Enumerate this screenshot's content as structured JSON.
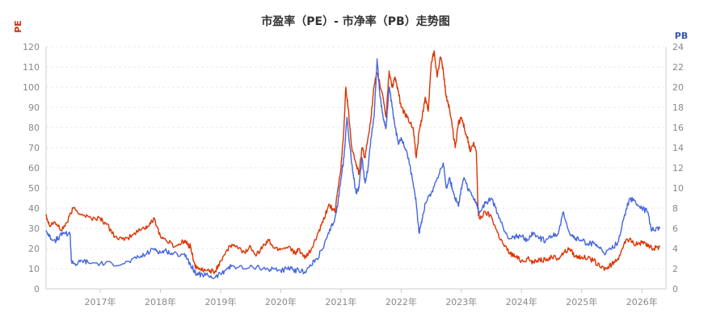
{
  "chart_data": {
    "type": "line",
    "title": "市盈率（PE）- 市净率（PB）走势图",
    "left_axis": {
      "label": "PE",
      "color": "#cc3311",
      "range": [
        0,
        120
      ],
      "ticks": [
        "0",
        "10",
        "20",
        "30",
        "40",
        "50",
        "60",
        "70",
        "80",
        "90",
        "100",
        "110",
        "120"
      ]
    },
    "right_axis": {
      "label": "PB",
      "color": "#3355bb",
      "range": [
        0,
        24
      ],
      "ticks": [
        "0",
        "2",
        "4",
        "6",
        "8",
        "10",
        "12",
        "14",
        "16",
        "18",
        "20",
        "22",
        "24"
      ]
    },
    "x_range": [
      2016.1,
      2026.4
    ],
    "x_ticks": [
      {
        "value": 2017,
        "label": "2017年"
      },
      {
        "value": 2018,
        "label": "2018年"
      },
      {
        "value": 2019,
        "label": "2019年"
      },
      {
        "value": 2020,
        "label": "2020年"
      },
      {
        "value": 2021,
        "label": "2021年"
      },
      {
        "value": 2022,
        "label": "2022年"
      },
      {
        "value": 2023,
        "label": "2023年"
      },
      {
        "value": 2024,
        "label": "2024年"
      },
      {
        "value": 2025,
        "label": "2025年"
      },
      {
        "value": 2026,
        "label": "2026年"
      }
    ],
    "grid": true,
    "series": [
      {
        "name": "PE",
        "axis": "left",
        "color": "#dd3300",
        "points": [
          [
            2016.1,
            37
          ],
          [
            2016.15,
            32
          ],
          [
            2016.25,
            33
          ],
          [
            2016.35,
            29
          ],
          [
            2016.45,
            33
          ],
          [
            2016.55,
            40
          ],
          [
            2016.7,
            37
          ],
          [
            2016.85,
            35
          ],
          [
            2017.0,
            35
          ],
          [
            2017.1,
            32
          ],
          [
            2017.25,
            26
          ],
          [
            2017.4,
            24
          ],
          [
            2017.55,
            27
          ],
          [
            2017.7,
            30
          ],
          [
            2017.8,
            31
          ],
          [
            2017.9,
            35
          ],
          [
            2018.0,
            26
          ],
          [
            2018.1,
            24
          ],
          [
            2018.25,
            21
          ],
          [
            2018.4,
            24
          ],
          [
            2018.45,
            22
          ],
          [
            2018.5,
            21
          ],
          [
            2018.55,
            14
          ],
          [
            2018.6,
            10
          ],
          [
            2018.75,
            9
          ],
          [
            2018.85,
            9
          ],
          [
            2018.9,
            8
          ],
          [
            2019.0,
            14
          ],
          [
            2019.1,
            19
          ],
          [
            2019.2,
            22
          ],
          [
            2019.3,
            20
          ],
          [
            2019.4,
            18
          ],
          [
            2019.5,
            21
          ],
          [
            2019.6,
            17
          ],
          [
            2019.7,
            21
          ],
          [
            2019.8,
            24
          ],
          [
            2019.9,
            20
          ],
          [
            2020.0,
            20
          ],
          [
            2020.15,
            21
          ],
          [
            2020.25,
            17
          ],
          [
            2020.3,
            20
          ],
          [
            2020.4,
            15
          ],
          [
            2020.5,
            19
          ],
          [
            2020.6,
            26
          ],
          [
            2020.7,
            33
          ],
          [
            2020.8,
            42
          ],
          [
            2020.9,
            38
          ],
          [
            2021.0,
            60
          ],
          [
            2021.05,
            80
          ],
          [
            2021.08,
            100
          ],
          [
            2021.12,
            90
          ],
          [
            2021.18,
            70
          ],
          [
            2021.25,
            62
          ],
          [
            2021.3,
            57
          ],
          [
            2021.35,
            70
          ],
          [
            2021.4,
            65
          ],
          [
            2021.45,
            75
          ],
          [
            2021.5,
            85
          ],
          [
            2021.55,
            100
          ],
          [
            2021.6,
            107
          ],
          [
            2021.7,
            95
          ],
          [
            2021.75,
            85
          ],
          [
            2021.8,
            108
          ],
          [
            2021.85,
            100
          ],
          [
            2021.9,
            105
          ],
          [
            2021.95,
            98
          ],
          [
            2022.0,
            90
          ],
          [
            2022.1,
            85
          ],
          [
            2022.2,
            80
          ],
          [
            2022.25,
            65
          ],
          [
            2022.3,
            78
          ],
          [
            2022.35,
            85
          ],
          [
            2022.4,
            95
          ],
          [
            2022.45,
            88
          ],
          [
            2022.5,
            112
          ],
          [
            2022.55,
            118
          ],
          [
            2022.6,
            105
          ],
          [
            2022.65,
            115
          ],
          [
            2022.7,
            108
          ],
          [
            2022.75,
            95
          ],
          [
            2022.8,
            90
          ],
          [
            2022.85,
            80
          ],
          [
            2022.9,
            70
          ],
          [
            2022.95,
            82
          ],
          [
            2023.0,
            85
          ],
          [
            2023.05,
            80
          ],
          [
            2023.1,
            75
          ],
          [
            2023.15,
            68
          ],
          [
            2023.2,
            72
          ],
          [
            2023.25,
            68
          ],
          [
            2023.28,
            38
          ],
          [
            2023.3,
            35
          ],
          [
            2023.4,
            38
          ],
          [
            2023.5,
            36
          ],
          [
            2023.6,
            28
          ],
          [
            2023.7,
            22
          ],
          [
            2023.8,
            18
          ],
          [
            2023.9,
            16
          ],
          [
            2024.0,
            14
          ],
          [
            2024.1,
            15
          ],
          [
            2024.2,
            13
          ],
          [
            2024.3,
            15
          ],
          [
            2024.4,
            14
          ],
          [
            2024.5,
            16
          ],
          [
            2024.6,
            15
          ],
          [
            2024.7,
            18
          ],
          [
            2024.8,
            20
          ],
          [
            2024.9,
            16
          ],
          [
            2025.0,
            16
          ],
          [
            2025.1,
            15
          ],
          [
            2025.2,
            14
          ],
          [
            2025.3,
            11
          ],
          [
            2025.4,
            10
          ],
          [
            2025.5,
            12
          ],
          [
            2025.6,
            15
          ],
          [
            2025.7,
            22
          ],
          [
            2025.8,
            25
          ],
          [
            2025.9,
            22
          ],
          [
            2026.0,
            23
          ],
          [
            2026.1,
            21
          ],
          [
            2026.2,
            20
          ],
          [
            2026.3,
            21
          ]
        ]
      },
      {
        "name": "PB",
        "axis": "right",
        "color": "#4466dd",
        "points": [
          [
            2016.1,
            5.8
          ],
          [
            2016.15,
            5.2
          ],
          [
            2016.25,
            4.8
          ],
          [
            2016.3,
            5.0
          ],
          [
            2016.4,
            5.6
          ],
          [
            2016.5,
            5.4
          ],
          [
            2016.52,
            2.8
          ],
          [
            2016.6,
            2.4
          ],
          [
            2016.7,
            2.8
          ],
          [
            2016.8,
            2.6
          ],
          [
            2017.0,
            2.5
          ],
          [
            2017.2,
            2.5
          ],
          [
            2017.4,
            2.5
          ],
          [
            2017.6,
            3.0
          ],
          [
            2017.75,
            3.4
          ],
          [
            2017.9,
            4.0
          ],
          [
            2018.0,
            3.6
          ],
          [
            2018.1,
            3.8
          ],
          [
            2018.2,
            3.4
          ],
          [
            2018.4,
            3.5
          ],
          [
            2018.5,
            2.4
          ],
          [
            2018.6,
            1.5
          ],
          [
            2018.7,
            1.4
          ],
          [
            2018.8,
            1.3
          ],
          [
            2018.9,
            1.1
          ],
          [
            2019.0,
            1.5
          ],
          [
            2019.1,
            2.0
          ],
          [
            2019.2,
            2.3
          ],
          [
            2019.4,
            2.0
          ],
          [
            2019.6,
            2.2
          ],
          [
            2019.8,
            1.9
          ],
          [
            2019.9,
            2.0
          ],
          [
            2020.0,
            1.8
          ],
          [
            2020.1,
            2.0
          ],
          [
            2020.2,
            1.9
          ],
          [
            2020.3,
            1.8
          ],
          [
            2020.4,
            1.7
          ],
          [
            2020.5,
            2.3
          ],
          [
            2020.6,
            3.0
          ],
          [
            2020.7,
            4.0
          ],
          [
            2020.8,
            5.5
          ],
          [
            2020.9,
            7.0
          ],
          [
            2020.95,
            8.5
          ],
          [
            2021.0,
            11.0
          ],
          [
            2021.05,
            13.0
          ],
          [
            2021.1,
            17.0
          ],
          [
            2021.15,
            14.0
          ],
          [
            2021.2,
            11.5
          ],
          [
            2021.25,
            9.5
          ],
          [
            2021.3,
            10.0
          ],
          [
            2021.35,
            13.0
          ],
          [
            2021.4,
            10.5
          ],
          [
            2021.45,
            12.0
          ],
          [
            2021.5,
            15.0
          ],
          [
            2021.55,
            17.0
          ],
          [
            2021.6,
            22.8
          ],
          [
            2021.65,
            19.0
          ],
          [
            2021.7,
            17.0
          ],
          [
            2021.75,
            16.0
          ],
          [
            2021.8,
            20.0
          ],
          [
            2021.85,
            18.0
          ],
          [
            2021.9,
            16.0
          ],
          [
            2021.95,
            14.5
          ],
          [
            2022.0,
            15.0
          ],
          [
            2022.1,
            13.5
          ],
          [
            2022.2,
            10.5
          ],
          [
            2022.25,
            8.5
          ],
          [
            2022.3,
            5.5
          ],
          [
            2022.35,
            7.0
          ],
          [
            2022.4,
            8.5
          ],
          [
            2022.5,
            9.5
          ],
          [
            2022.6,
            11.0
          ],
          [
            2022.7,
            12.5
          ],
          [
            2022.75,
            10.0
          ],
          [
            2022.8,
            11.0
          ],
          [
            2022.85,
            10.0
          ],
          [
            2022.9,
            9.0
          ],
          [
            2022.95,
            8.2
          ],
          [
            2023.0,
            10.0
          ],
          [
            2023.05,
            11.0
          ],
          [
            2023.1,
            10.0
          ],
          [
            2023.2,
            9.0
          ],
          [
            2023.25,
            8.5
          ],
          [
            2023.3,
            7.5
          ],
          [
            2023.4,
            8.5
          ],
          [
            2023.5,
            9.0
          ],
          [
            2023.6,
            7.5
          ],
          [
            2023.7,
            6.0
          ],
          [
            2023.8,
            5.0
          ],
          [
            2023.9,
            5.2
          ],
          [
            2024.0,
            5.2
          ],
          [
            2024.1,
            4.8
          ],
          [
            2024.2,
            5.6
          ],
          [
            2024.3,
            5.0
          ],
          [
            2024.4,
            4.8
          ],
          [
            2024.5,
            5.2
          ],
          [
            2024.6,
            5.4
          ],
          [
            2024.7,
            7.6
          ],
          [
            2024.8,
            5.5
          ],
          [
            2024.9,
            5.0
          ],
          [
            2025.0,
            4.8
          ],
          [
            2025.1,
            4.5
          ],
          [
            2025.2,
            4.5
          ],
          [
            2025.3,
            4.0
          ],
          [
            2025.4,
            3.5
          ],
          [
            2025.5,
            4.0
          ],
          [
            2025.6,
            4.6
          ],
          [
            2025.7,
            7.0
          ],
          [
            2025.8,
            9.0
          ],
          [
            2025.9,
            8.5
          ],
          [
            2026.0,
            8.0
          ],
          [
            2026.1,
            7.6
          ],
          [
            2026.15,
            6.0
          ],
          [
            2026.2,
            5.8
          ],
          [
            2026.3,
            6.0
          ]
        ]
      }
    ]
  }
}
